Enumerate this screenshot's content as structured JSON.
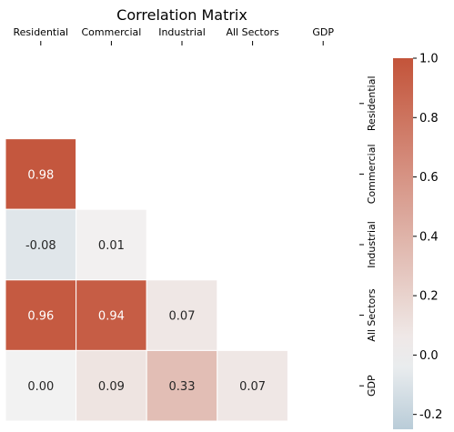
{
  "chart_data": {
    "type": "heatmap",
    "title": "Correlation Matrix",
    "x_labels": [
      "Residential",
      "Commercial",
      "Industrial",
      "All Sectors",
      "GDP"
    ],
    "y_labels": [
      "Residential",
      "Commercial",
      "Industrial",
      "All Sectors",
      "GDP"
    ],
    "mask": "upper-triangle-including-diagonal",
    "cells": [
      {
        "row": 1,
        "col": 0,
        "value": 0.98
      },
      {
        "row": 2,
        "col": 0,
        "value": -0.08
      },
      {
        "row": 2,
        "col": 1,
        "value": 0.01
      },
      {
        "row": 3,
        "col": 0,
        "value": 0.96
      },
      {
        "row": 3,
        "col": 1,
        "value": 0.94
      },
      {
        "row": 3,
        "col": 2,
        "value": 0.07
      },
      {
        "row": 4,
        "col": 0,
        "value": 0.0
      },
      {
        "row": 4,
        "col": 1,
        "value": 0.09
      },
      {
        "row": 4,
        "col": 2,
        "value": 0.33
      },
      {
        "row": 4,
        "col": 3,
        "value": 0.07
      }
    ],
    "x_ticks_position": "top",
    "y_ticks_position": "right",
    "colorbar": {
      "range": [
        -0.25,
        1.0
      ],
      "ticks": [
        "-0.2",
        "0.0",
        "0.2",
        "0.4",
        "0.6",
        "0.8",
        "1.0"
      ],
      "colors": {
        "negative": "#b9ccd8",
        "center": "#f2f2f2",
        "positive": "#c3543a"
      }
    },
    "grid": false,
    "legend": "colorbar-right"
  }
}
